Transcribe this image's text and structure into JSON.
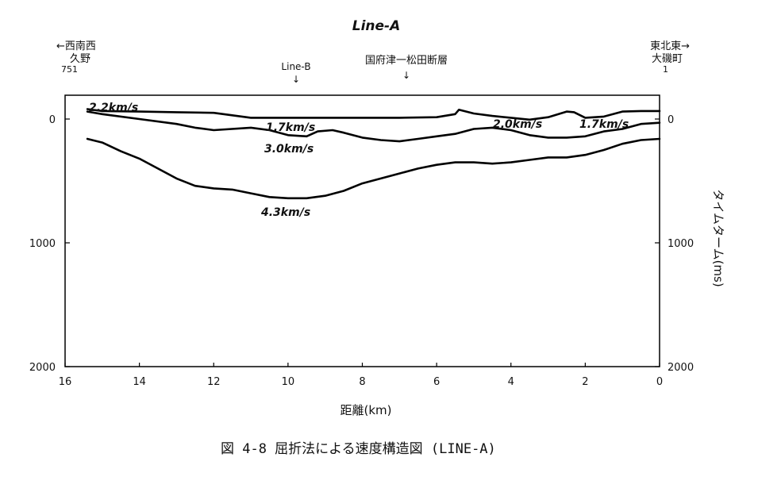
{
  "chart_data": {
    "type": "line",
    "title": "Line-A",
    "xlabel": "距離(km)",
    "ylabel": "タイムターム(ms)",
    "xlim": [
      16,
      0
    ],
    "ylim": [
      -200,
      2000
    ],
    "x_ticks": [
      "16",
      "14",
      "12",
      "10",
      "8",
      "6",
      "4",
      "2",
      "0"
    ],
    "y_ticks": [
      "0",
      "1000",
      "2000"
    ],
    "grid": false,
    "annotations": {
      "left_arrow": "←西南西",
      "left_place": "久野",
      "left_num": "751",
      "right_arrow": "東北東→",
      "right_place": "大磯町",
      "right_num": "1",
      "line_b": "Line-B",
      "line_b_arrow": "↓",
      "fault": "国府津一松田断層",
      "fault_arrow": "↓"
    },
    "series": [
      {
        "name": "2.2km/s",
        "x": [
          15.4,
          15.0,
          14.0,
          13.0,
          12.0,
          11.0,
          10.0,
          9.0,
          8.0,
          7.0,
          6.0,
          5.5,
          5.4,
          5.0,
          4.5,
          4.0,
          3.5,
          3.0,
          2.5,
          2.3,
          2.0,
          1.5,
          1.0,
          0.5,
          0
        ],
        "y": [
          -80,
          -65,
          -60,
          -55,
          -50,
          -10,
          -10,
          -10,
          -10,
          -10,
          -15,
          -40,
          -75,
          -45,
          -25,
          -10,
          5,
          -15,
          -60,
          -55,
          -10,
          -20,
          -60,
          -65,
          -65
        ]
      },
      {
        "name": "1.7km/s",
        "x": [
          15.4,
          15.0,
          14.0,
          13.0,
          12.5,
          12.0,
          11.0,
          10.5,
          10.0,
          9.5,
          9.2,
          8.8,
          8.5,
          8.0,
          7.5,
          7.0,
          6.5,
          6.0,
          5.5,
          5.0,
          4.5,
          4.0,
          3.5,
          3.0,
          2.5,
          2.0,
          1.5,
          1.0,
          0.5,
          0
        ],
        "y": [
          -60,
          -40,
          0,
          40,
          70,
          90,
          70,
          90,
          130,
          140,
          100,
          90,
          110,
          150,
          170,
          180,
          160,
          140,
          120,
          80,
          70,
          90,
          130,
          150,
          150,
          140,
          100,
          80,
          40,
          30
        ]
      },
      {
        "name": "3.0km/s",
        "x": [
          15.4,
          15.0,
          14.5,
          14.0,
          13.5,
          13.0,
          12.5,
          12.0,
          11.5,
          11.0,
          10.5,
          10.0,
          9.5,
          9.0,
          8.5,
          8.0,
          7.5,
          7.0,
          6.5,
          6.0,
          5.5,
          5.0,
          4.5,
          4.0,
          3.5,
          3.0,
          2.5,
          2.0,
          1.5,
          1.0,
          0.5,
          0
        ],
        "y": [
          160,
          190,
          260,
          320,
          400,
          480,
          540,
          560,
          570,
          600,
          630,
          640,
          640,
          620,
          580,
          520,
          480,
          440,
          400,
          370,
          350,
          350,
          360,
          350,
          330,
          310,
          310,
          290,
          250,
          200,
          170,
          160
        ]
      }
    ],
    "layer_labels": [
      "2.2km/s",
      "1.7km/s",
      "3.0km/s",
      "4.3km/s",
      "2.0km/s",
      "1.7km/s"
    ]
  },
  "caption": "図 4-8  屈折法による速度構造図 (LINE-A)"
}
